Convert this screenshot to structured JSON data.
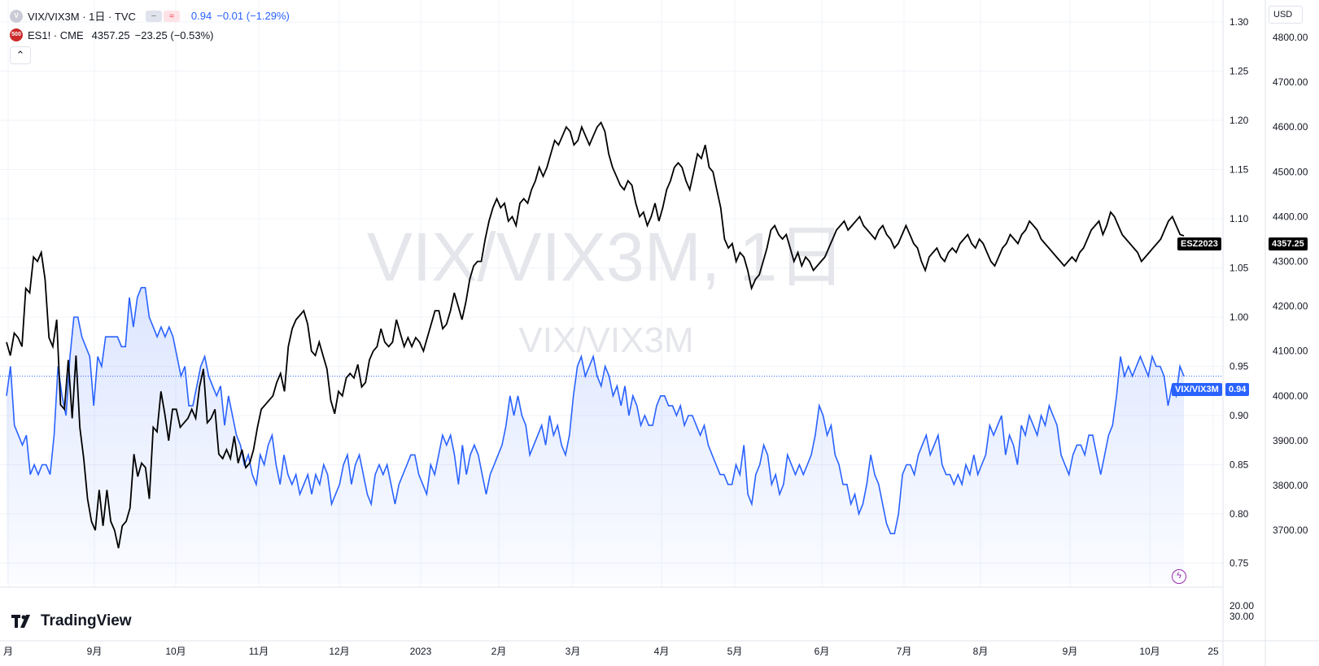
{
  "legend": {
    "main_symbol": "VIX/VIX3M · 1日 · TVC",
    "main_icon": "V",
    "main_value": "0.94",
    "main_change": "−0.01 (−1.29%)",
    "compare_icon": "500",
    "compare_symbol": "ES1! · CME",
    "compare_value": "4357.25",
    "compare_change": "−23.25 (−0.53%)"
  },
  "watermark": {
    "main": "VIX/VIX3M, 1日",
    "sub": "VIX/VIX3M"
  },
  "currency": "USD",
  "brand": "TradingView",
  "tags": {
    "es_label": "ESZ2023",
    "es_price": "4357.25",
    "vix_label": "VIX/VIX3M",
    "vix_price": "0.94"
  },
  "colors": {
    "vix": "#2962ff",
    "es": "#000000",
    "es_tag": "#000000",
    "vix_tag": "#2962ff",
    "compare_icon_bg": "#cc2b2b",
    "main_icon_bg": "#c9ccd6"
  },
  "chart_data": {
    "type": "line",
    "x_ticks": [
      "月",
      "9月",
      "10月",
      "11月",
      "12月",
      "2023",
      "2月",
      "3月",
      "4月",
      "5月",
      "6月",
      "7月",
      "8月",
      "9月",
      "10月",
      "25"
    ],
    "y_left_ticks": [
      "1.30",
      "1.25",
      "1.20",
      "1.15",
      "1.10",
      "1.05",
      "1.00",
      "0.95",
      "0.90",
      "0.85",
      "0.80",
      "0.75"
    ],
    "y_right_ticks": [
      "4800.00",
      "4700.00",
      "4600.00",
      "4500.00",
      "4400.00",
      "4300.00",
      "4200.00",
      "4100.00",
      "4000.00",
      "3900.00",
      "3800.00",
      "3700.00"
    ],
    "indicator_ticks": [
      "20.00",
      "30.00"
    ],
    "ratio_range": [
      0.75,
      1.3
    ],
    "es_range": [
      3700,
      4800
    ],
    "series": [
      {
        "name": "VIX/VIX3M",
        "axis": "left",
        "values": [
          0.92,
          0.95,
          0.89,
          0.88,
          0.87,
          0.88,
          0.84,
          0.85,
          0.84,
          0.85,
          0.85,
          0.84,
          0.88,
          0.95,
          0.92,
          0.9,
          0.96,
          1.0,
          1.0,
          0.98,
          0.97,
          0.96,
          0.91,
          0.96,
          0.95,
          0.98,
          0.98,
          0.98,
          0.98,
          0.97,
          0.97,
          1.02,
          0.99,
          1.02,
          1.03,
          1.03,
          1.0,
          0.99,
          0.98,
          0.99,
          0.98,
          0.99,
          0.98,
          0.96,
          0.94,
          0.95,
          0.91,
          0.91,
          0.93,
          0.95,
          0.96,
          0.94,
          0.93,
          0.92,
          0.93,
          0.89,
          0.92,
          0.9,
          0.88,
          0.87,
          0.85,
          0.86,
          0.84,
          0.83,
          0.86,
          0.85,
          0.87,
          0.88,
          0.85,
          0.83,
          0.86,
          0.84,
          0.83,
          0.84,
          0.82,
          0.83,
          0.84,
          0.82,
          0.84,
          0.83,
          0.85,
          0.84,
          0.81,
          0.82,
          0.83,
          0.85,
          0.86,
          0.83,
          0.85,
          0.86,
          0.84,
          0.82,
          0.81,
          0.84,
          0.85,
          0.84,
          0.85,
          0.83,
          0.81,
          0.83,
          0.84,
          0.85,
          0.86,
          0.86,
          0.84,
          0.83,
          0.82,
          0.85,
          0.84,
          0.86,
          0.88,
          0.87,
          0.88,
          0.86,
          0.83,
          0.87,
          0.84,
          0.86,
          0.87,
          0.86,
          0.84,
          0.82,
          0.84,
          0.85,
          0.86,
          0.87,
          0.89,
          0.92,
          0.9,
          0.92,
          0.9,
          0.89,
          0.86,
          0.87,
          0.88,
          0.89,
          0.87,
          0.9,
          0.88,
          0.89,
          0.87,
          0.86,
          0.88,
          0.92,
          0.95,
          0.96,
          0.94,
          0.95,
          0.96,
          0.94,
          0.93,
          0.95,
          0.94,
          0.92,
          0.93,
          0.91,
          0.93,
          0.9,
          0.92,
          0.91,
          0.89,
          0.9,
          0.89,
          0.89,
          0.91,
          0.92,
          0.92,
          0.91,
          0.91,
          0.9,
          0.91,
          0.89,
          0.9,
          0.9,
          0.89,
          0.88,
          0.89,
          0.87,
          0.86,
          0.85,
          0.84,
          0.84,
          0.83,
          0.83,
          0.85,
          0.84,
          0.87,
          0.82,
          0.81,
          0.84,
          0.85,
          0.87,
          0.86,
          0.83,
          0.84,
          0.82,
          0.83,
          0.86,
          0.85,
          0.84,
          0.85,
          0.84,
          0.85,
          0.86,
          0.88,
          0.91,
          0.9,
          0.88,
          0.89,
          0.86,
          0.85,
          0.83,
          0.83,
          0.81,
          0.82,
          0.8,
          0.81,
          0.83,
          0.86,
          0.84,
          0.83,
          0.81,
          0.79,
          0.78,
          0.78,
          0.8,
          0.84,
          0.85,
          0.85,
          0.84,
          0.86,
          0.87,
          0.88,
          0.86,
          0.87,
          0.88,
          0.85,
          0.84,
          0.84,
          0.83,
          0.84,
          0.83,
          0.85,
          0.84,
          0.86,
          0.84,
          0.85,
          0.86,
          0.89,
          0.88,
          0.89,
          0.9,
          0.86,
          0.88,
          0.87,
          0.85,
          0.89,
          0.88,
          0.9,
          0.89,
          0.88,
          0.9,
          0.89,
          0.91,
          0.9,
          0.89,
          0.86,
          0.85,
          0.84,
          0.86,
          0.87,
          0.87,
          0.86,
          0.88,
          0.88,
          0.86,
          0.84,
          0.86,
          0.88,
          0.89,
          0.92,
          0.96,
          0.94,
          0.95,
          0.94,
          0.95,
          0.96,
          0.95,
          0.94,
          0.96,
          0.95,
          0.95,
          0.94,
          0.91,
          0.93,
          0.92,
          0.95,
          0.94
        ]
      },
      {
        "name": "ESZ2023",
        "axis": "right",
        "values": [
          4120,
          4090,
          4140,
          4130,
          4110,
          4240,
          4230,
          4310,
          4300,
          4320,
          4260,
          4130,
          4110,
          4170,
          3980,
          3970,
          4080,
          3950,
          4090,
          3930,
          3860,
          3770,
          3720,
          3700,
          3790,
          3710,
          3790,
          3720,
          3700,
          3660,
          3710,
          3720,
          3750,
          3870,
          3820,
          3850,
          3840,
          3770,
          3930,
          3920,
          4010,
          3960,
          3900,
          3970,
          3970,
          3930,
          3940,
          3950,
          3970,
          3950,
          4020,
          4060,
          3940,
          3950,
          3970,
          3870,
          3860,
          3880,
          3860,
          3910,
          3850,
          3880,
          3840,
          3850,
          3880,
          3930,
          3970,
          3980,
          3990,
          4000,
          4030,
          4050,
          4010,
          4110,
          4150,
          4170,
          4180,
          4190,
          4160,
          4100,
          4090,
          4120,
          4090,
          4060,
          3990,
          3960,
          4010,
          4000,
          4040,
          4050,
          4040,
          4070,
          4020,
          4030,
          4080,
          4100,
          4110,
          4150,
          4120,
          4110,
          4120,
          4170,
          4140,
          4110,
          4130,
          4110,
          4130,
          4120,
          4100,
          4130,
          4160,
          4190,
          4190,
          4150,
          4160,
          4190,
          4230,
          4200,
          4170,
          4210,
          4260,
          4290,
          4300,
          4300,
          4350,
          4390,
          4420,
          4440,
          4420,
          4430,
          4390,
          4400,
          4380,
          4430,
          4440,
          4430,
          4460,
          4480,
          4510,
          4490,
          4510,
          4540,
          4570,
          4560,
          4580,
          4600,
          4590,
          4560,
          4570,
          4600,
          4580,
          4560,
          4580,
          4600,
          4610,
          4590,
          4540,
          4510,
          4490,
          4470,
          4460,
          4480,
          4470,
          4430,
          4400,
          4410,
          4380,
          4400,
          4430,
          4390,
          4420,
          4460,
          4480,
          4510,
          4520,
          4510,
          4480,
          4460,
          4500,
          4540,
          4530,
          4560,
          4510,
          4500,
          4460,
          4420,
          4350,
          4330,
          4340,
          4300,
          4320,
          4310,
          4280,
          4240,
          4260,
          4270,
          4300,
          4330,
          4370,
          4380,
          4360,
          4350,
          4360,
          4330,
          4300,
          4320,
          4290,
          4310,
          4300,
          4280,
          4290,
          4300,
          4310,
          4330,
          4350,
          4370,
          4380,
          4390,
          4370,
          4380,
          4390,
          4400,
          4380,
          4370,
          4360,
          4350,
          4370,
          4380,
          4360,
          4350,
          4330,
          4340,
          4360,
          4380,
          4360,
          4340,
          4330,
          4300,
          4280,
          4310,
          4320,
          4330,
          4310,
          4300,
          4320,
          4330,
          4320,
          4340,
          4350,
          4360,
          4340,
          4330,
          4350,
          4340,
          4320,
          4300,
          4290,
          4310,
          4330,
          4340,
          4360,
          4350,
          4340,
          4360,
          4370,
          4390,
          4380,
          4370,
          4350,
          4340,
          4330,
          4320,
          4310,
          4300,
          4290,
          4300,
          4310,
          4300,
          4320,
          4330,
          4350,
          4370,
          4380,
          4390,
          4360,
          4380,
          4410,
          4400,
          4380,
          4360,
          4350,
          4340,
          4330,
          4320,
          4300,
          4310,
          4320,
          4330,
          4340,
          4350,
          4370,
          4390,
          4400,
          4380,
          4360,
          4357.25
        ]
      }
    ],
    "legend_position": "top-left",
    "grid": true
  }
}
